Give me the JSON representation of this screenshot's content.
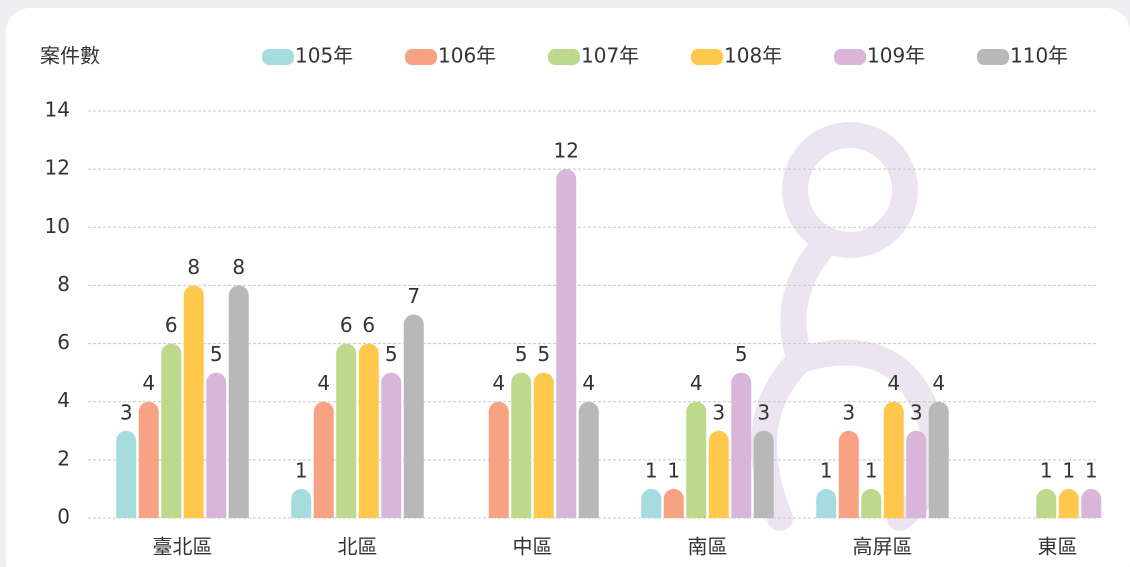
{
  "chart_data": {
    "type": "bar",
    "y_label": "案件數",
    "categories": [
      "臺北區",
      "北區",
      "中區",
      "南區",
      "高屏區",
      "東區"
    ],
    "series": [
      {
        "name": "105年",
        "color": "#a6dcdf",
        "values": [
          3,
          1,
          null,
          1,
          1,
          null
        ]
      },
      {
        "name": "106年",
        "color": "#f7a383",
        "values": [
          4,
          4,
          4,
          1,
          3,
          null
        ]
      },
      {
        "name": "107年",
        "color": "#bcd98c",
        "values": [
          6,
          6,
          5,
          4,
          1,
          1
        ]
      },
      {
        "name": "108年",
        "color": "#ffc84c",
        "values": [
          8,
          6,
          5,
          3,
          4,
          1
        ]
      },
      {
        "name": "109年",
        "color": "#d9b5d9",
        "values": [
          5,
          5,
          12,
          5,
          3,
          1
        ]
      },
      {
        "name": "110年",
        "color": "#b8b8b8",
        "values": [
          8,
          7,
          4,
          3,
          4,
          null
        ]
      }
    ],
    "ylim": [
      0,
      14
    ],
    "yticks": [
      0,
      2,
      4,
      6,
      8,
      10,
      12,
      14
    ],
    "grid": true
  }
}
